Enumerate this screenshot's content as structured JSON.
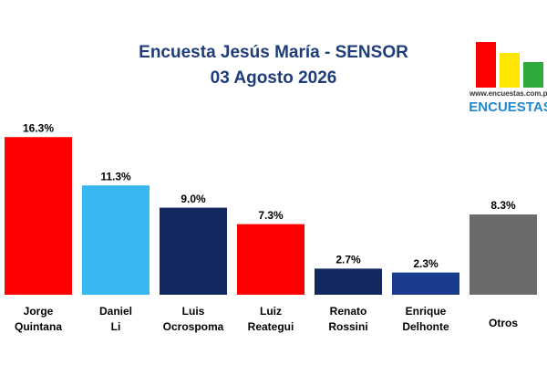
{
  "chart_data": {
    "type": "bar",
    "title": "Encuesta Jesús María - SENSOR",
    "subtitle": "03 Agosto 2026",
    "source": "www.encuestas.com.pe",
    "brand": "ENCUESTAS",
    "categories": [
      [
        "Jorge",
        "Quintana"
      ],
      [
        "Daniel",
        "Li"
      ],
      [
        "Luis",
        "Ocrospoma"
      ],
      [
        "Luiz",
        "Reategui"
      ],
      [
        "Renato",
        "Rossini"
      ],
      [
        "Enrique",
        "Delhonte"
      ],
      [
        "Otros"
      ]
    ],
    "values": [
      16.3,
      11.3,
      9.0,
      7.3,
      2.7,
      2.3,
      8.3
    ],
    "value_labels": [
      "16.3%",
      "11.3%",
      "9.0%",
      "7.3%",
      "2.7%",
      "2.3%",
      "8.3%"
    ],
    "colors": [
      "#ff0000",
      "#38b6f0",
      "#13285e",
      "#ff0000",
      "#13285e",
      "#1a3c8c",
      "#6b6b6b"
    ]
  }
}
